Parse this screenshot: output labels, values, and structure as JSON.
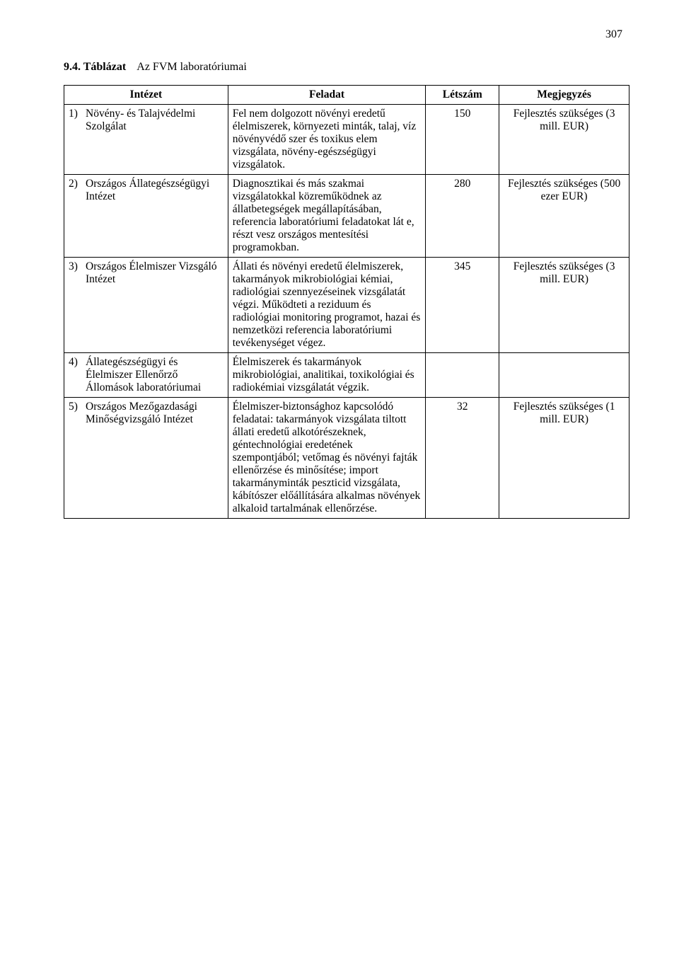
{
  "page_number": "307",
  "table_title_prefix": "9.4. Táblázat",
  "table_title_rest": "    Az FVM laboratóriumai",
  "columns": {
    "c1": "Intézet",
    "c2": "Feladat",
    "c3": "Létszám",
    "c4": "Megjegyzés"
  },
  "rows": [
    {
      "num": "1)",
      "intezet": "Növény- és Talajvédelmi Szolgálat",
      "feladat": "Fel nem dolgozott növényi eredetű élelmiszerek, környezeti minták, talaj, víz növényvédő szer és toxikus elem vizsgálata, növény-egészségügyi vizsgálatok.",
      "letszam": "150",
      "megjegyzes": "Fejlesztés szükséges (3 mill. EUR)"
    },
    {
      "num": "2)",
      "intezet": "Országos Állategészségügyi Intézet",
      "feladat": "Diagnosztikai és más szakmai vizsgálatokkal közreműködnek az állatbetegségek megállapításában, referencia laboratóriumi feladatokat lát e, részt vesz országos mentesítési programokban.",
      "letszam": "280",
      "megjegyzes": "Fejlesztés szükséges (500 ezer EUR)"
    },
    {
      "num": "3)",
      "intezet": "Országos Élelmiszer Vizsgáló Intézet",
      "feladat": "Állati és növényi eredetű élelmiszerek, takarmányok mikrobiológiai kémiai, radiológiai szennyezéseinek vizsgálatát végzi. Működteti a reziduum és radiológiai monitoring programot, hazai és nemzetközi referencia laboratóriumi tevékenységet végez.",
      "letszam": "345",
      "megjegyzes": "Fejlesztés szükséges (3 mill. EUR)"
    },
    {
      "num": "4)",
      "intezet": "Állategészségügyi és Élelmiszer Ellenőrző Állomások laboratóriumai",
      "feladat": "Élelmiszerek és takarmányok mikrobiológiai, analitikai, toxikológiai és radiokémiai vizsgálatát végzik.",
      "letszam": "",
      "megjegyzes": ""
    },
    {
      "num": "5)",
      "intezet": "Országos Mezőgazdasági Minőségvizsgáló Intézet",
      "feladat": "Élelmiszer-biztonsághoz kapcsolódó feladatai: takarmányok vizsgálata tiltott állati eredetű alkotórészeknek, géntechnológiai eredetének szempontjából; vetőmag és növényi fajták ellenőrzése és minősítése; import takarmányminták peszticid vizsgálata, kábítószer előállítására alkalmas növények alkaloid tartalmának ellenőrzése.",
      "letszam": "32",
      "megjegyzes": "Fejlesztés szükséges (1 mill. EUR)"
    }
  ],
  "styles": {
    "font_family": "Times New Roman",
    "font_size_body": 15.5,
    "font_size_header": 16,
    "border_color": "#000000",
    "background_color": "#ffffff",
    "text_color": "#000000"
  }
}
